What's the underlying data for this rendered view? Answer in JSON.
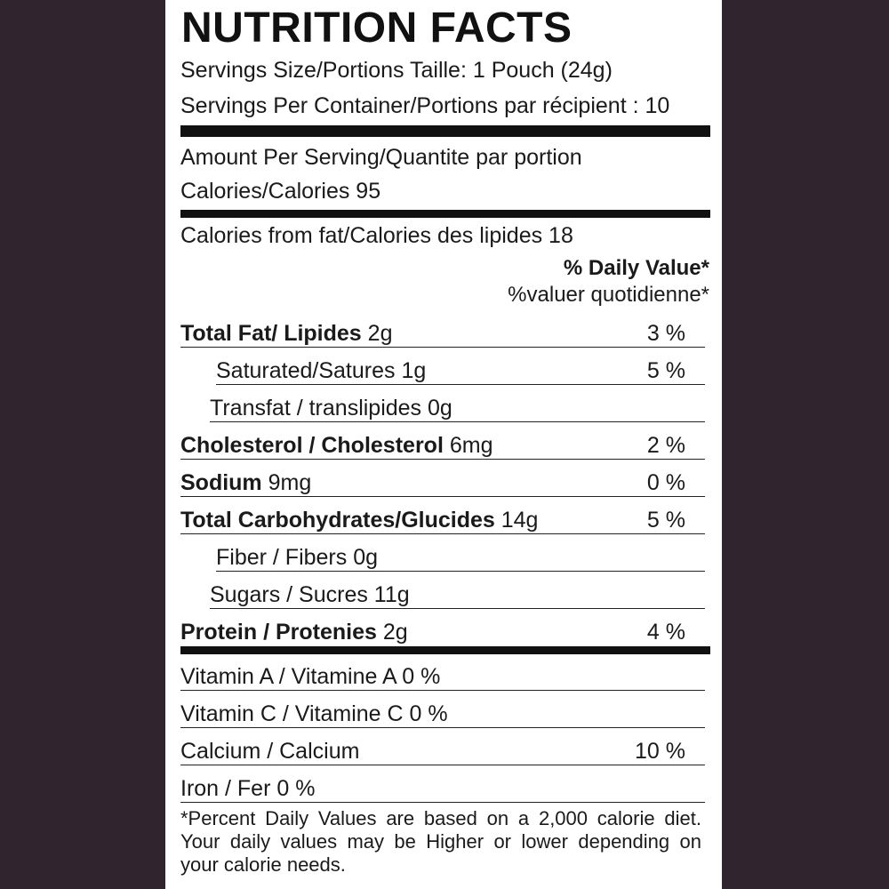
{
  "title": "NUTRITION FACTS",
  "serving_size": "Servings Size/Portions Taille: 1 Pouch (24g)",
  "servings_per_container": "Servings Per Container/Portions par récipient : 10",
  "amount_per_serving": "Amount Per Serving/Quantite par portion",
  "calories": "Calories/Calories  95",
  "calories_from_fat": "Calories from fat/Calories des lipides 18",
  "daily_value_header": "% Daily Value*",
  "daily_value_header_fr": "%valuer quotidienne*",
  "nutrients": [
    {
      "bold": "Total Fat/ Lipides",
      "rest": " 2g",
      "pct": "3 %"
    },
    {
      "bold": "",
      "rest": "Saturated/Satures 1g",
      "pct": "5 %"
    },
    {
      "bold": "",
      "rest": "Transfat / translipides 0g",
      "pct": ""
    },
    {
      "bold": "Cholesterol / Cholesterol",
      "rest": " 6mg",
      "pct": "2 %"
    },
    {
      "bold": "Sodium",
      "rest": " 9mg",
      "pct": "0 %"
    },
    {
      "bold": "Total Carbohydrates/Glucides",
      "rest": " 14g",
      "pct": "5 %"
    },
    {
      "bold": "",
      "rest": "Fiber / Fibers 0g",
      "pct": ""
    },
    {
      "bold": "",
      "rest": "Sugars / Sucres 11g",
      "pct": ""
    },
    {
      "bold": "Protein / Protenies",
      "rest": " 2g",
      "pct": "4 %"
    }
  ],
  "vitamins": [
    {
      "text": "Vitamin A / Vitamine A 0 %",
      "pct": ""
    },
    {
      "text": "Vitamin C / Vitamine C 0 %",
      "pct": ""
    },
    {
      "text": "Calcium / Calcium",
      "pct": "10 %"
    },
    {
      "text": "Iron / Fer 0 %",
      "pct": ""
    }
  ],
  "footnote": "*Percent Daily Values are based on a 2,000 calorie diet. Your daily values may be Higher or lower depending on your calorie needs."
}
